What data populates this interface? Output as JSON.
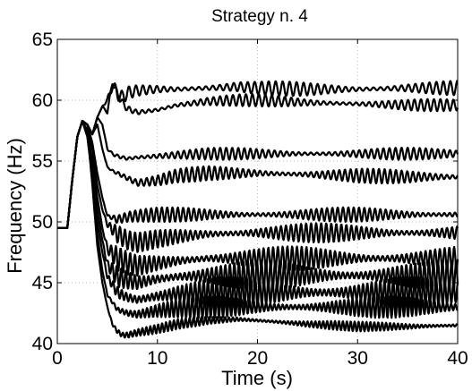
{
  "chart_data": {
    "type": "line",
    "title": "Strategy n. 4",
    "xlabel": "Time (s)",
    "ylabel": "Frequency (Hz)",
    "xlim": [
      0,
      40
    ],
    "ylim": [
      40,
      65
    ],
    "xticks": [
      0,
      10,
      20,
      30,
      40
    ],
    "yticks": [
      40,
      45,
      50,
      55,
      60,
      65
    ],
    "grid": true,
    "legend": "none",
    "line_color": "#000000",
    "series": [
      {
        "x": [
          0,
          1,
          1.5,
          2,
          2.5,
          3,
          3.5,
          4,
          4.5,
          5,
          5.5,
          6,
          6.5,
          7,
          8,
          10,
          12,
          15,
          18,
          20,
          25,
          30,
          35,
          40
        ],
        "y": [
          49.5,
          49.5,
          53.5,
          57.0,
          58.3,
          58.0,
          57.2,
          58.6,
          59.5,
          60.0,
          61.2,
          60.6,
          60.2,
          60.6,
          60.8,
          60.9,
          60.9,
          61.0,
          61.1,
          61.0,
          60.9,
          60.9,
          61.0,
          61.0
        ],
        "amp": 0.6
      },
      {
        "x": [
          0,
          1,
          1.5,
          2,
          2.5,
          3,
          3.5,
          4,
          4.5,
          5,
          5.5,
          6,
          6.5,
          7,
          8,
          10,
          12,
          15,
          18,
          20,
          25,
          30,
          35,
          40
        ],
        "y": [
          49.5,
          49.5,
          53.5,
          57.0,
          58.3,
          58.0,
          57.2,
          58.6,
          59.5,
          59.0,
          61.5,
          60.5,
          59.8,
          59.3,
          59.0,
          59.2,
          59.6,
          59.9,
          60.0,
          60.0,
          59.8,
          59.7,
          59.6,
          59.6
        ],
        "amp": 0.5
      },
      {
        "x": [
          0,
          1,
          1.5,
          2,
          2.5,
          3,
          3.5,
          4,
          4.5,
          5,
          5.5,
          6,
          7,
          8,
          10,
          12,
          15,
          20,
          25,
          30,
          35,
          40
        ],
        "y": [
          49.5,
          49.5,
          53.5,
          57.0,
          58.3,
          58.0,
          57.2,
          58.6,
          58.0,
          56.0,
          55.6,
          55.4,
          55.2,
          55.3,
          55.4,
          55.5,
          55.6,
          55.6,
          55.6,
          55.6,
          55.6,
          55.6
        ],
        "amp": 0.5
      },
      {
        "x": [
          0,
          1,
          1.5,
          2,
          2.5,
          3,
          3.5,
          4,
          4.5,
          5,
          5.5,
          6,
          7,
          8,
          10,
          12,
          15,
          20,
          25,
          30,
          35,
          40
        ],
        "y": [
          49.5,
          49.5,
          53.5,
          57.0,
          58.3,
          58.0,
          57.2,
          58.0,
          56.0,
          54.5,
          54.2,
          54.0,
          53.6,
          53.2,
          53.4,
          53.8,
          54.0,
          54.0,
          53.9,
          53.8,
          53.7,
          53.7
        ],
        "amp": 0.6
      },
      {
        "x": [
          0,
          1,
          1.5,
          2,
          2.5,
          3,
          3.5,
          4,
          4.5,
          5,
          6,
          7,
          8,
          10,
          12,
          15,
          20,
          25,
          30,
          35,
          40
        ],
        "y": [
          49.5,
          49.5,
          53.5,
          57.0,
          58.3,
          58.0,
          56.5,
          54.0,
          52.0,
          50.5,
          50.2,
          50.4,
          50.5,
          50.6,
          50.6,
          50.6,
          50.6,
          50.6,
          50.6,
          50.6,
          50.6
        ],
        "amp": 0.6
      },
      {
        "x": [
          0,
          1,
          1.5,
          2,
          2.5,
          3,
          3.5,
          4,
          4.5,
          5,
          6,
          7,
          8,
          10,
          12,
          15,
          20,
          25,
          30,
          35,
          40
        ],
        "y": [
          49.5,
          49.5,
          53.5,
          57.0,
          58.3,
          58.0,
          56.0,
          53.0,
          51.0,
          49.8,
          49.0,
          48.5,
          48.3,
          48.6,
          48.8,
          49.0,
          49.1,
          49.1,
          49.1,
          49.1,
          49.1
        ],
        "amp": 0.8
      },
      {
        "x": [
          0,
          1,
          1.5,
          2,
          2.5,
          3,
          3.5,
          4,
          4.5,
          5,
          6,
          7,
          8,
          10,
          12,
          15,
          20,
          25,
          30,
          35,
          40
        ],
        "y": [
          49.5,
          49.5,
          53.5,
          57.0,
          58.3,
          57.5,
          55.0,
          52.0,
          49.5,
          47.8,
          47.0,
          46.6,
          46.4,
          46.6,
          46.8,
          47.0,
          47.0,
          47.0,
          47.0,
          47.0,
          47.0
        ],
        "amp": 1.0
      },
      {
        "x": [
          0,
          1,
          1.5,
          2,
          2.5,
          3,
          3.5,
          4,
          4.5,
          5,
          6,
          7,
          8,
          10,
          12,
          15,
          20,
          25,
          30,
          35,
          40
        ],
        "y": [
          49.5,
          49.5,
          53.5,
          57.0,
          58.3,
          57.5,
          54.5,
          51.0,
          48.5,
          46.5,
          45.5,
          45.2,
          45.0,
          45.3,
          45.5,
          45.6,
          45.6,
          45.6,
          45.6,
          45.6,
          45.6
        ],
        "amp": 1.2
      },
      {
        "x": [
          0,
          1,
          1.5,
          2,
          2.5,
          3,
          3.5,
          4,
          4.5,
          5,
          6,
          7,
          8,
          10,
          12,
          15,
          20,
          25,
          30,
          35,
          40
        ],
        "y": [
          49.5,
          49.5,
          53.5,
          57.0,
          58.3,
          57.0,
          54.0,
          50.0,
          47.5,
          45.5,
          44.2,
          43.8,
          43.6,
          43.9,
          44.1,
          44.2,
          44.2,
          44.2,
          44.2,
          44.2,
          44.2
        ],
        "amp": 1.3
      },
      {
        "x": [
          0,
          1,
          1.5,
          2,
          2.5,
          3,
          3.5,
          4,
          4.5,
          5,
          6,
          7,
          8,
          10,
          12,
          15,
          20,
          25,
          30,
          35,
          40
        ],
        "y": [
          49.5,
          49.5,
          53.5,
          57.0,
          58.3,
          57.0,
          53.5,
          49.0,
          46.0,
          44.0,
          42.8,
          42.5,
          42.4,
          42.7,
          42.9,
          43.0,
          43.0,
          43.0,
          43.0,
          43.0,
          43.0
        ],
        "amp": 0.9
      },
      {
        "x": [
          0,
          1,
          1.5,
          2,
          2.5,
          3,
          3.5,
          4,
          4.5,
          5,
          5.5,
          6,
          6.5,
          7,
          8,
          10,
          12,
          15,
          18,
          20,
          25,
          30,
          35,
          40
        ],
        "y": [
          49.5,
          49.5,
          53.5,
          57.0,
          58.3,
          57.5,
          53.0,
          48.0,
          45.0,
          43.0,
          41.6,
          41.0,
          40.7,
          40.7,
          40.9,
          41.2,
          41.6,
          41.9,
          42.0,
          41.9,
          41.6,
          41.4,
          41.4,
          41.5
        ],
        "amp": 0.4
      }
    ]
  }
}
